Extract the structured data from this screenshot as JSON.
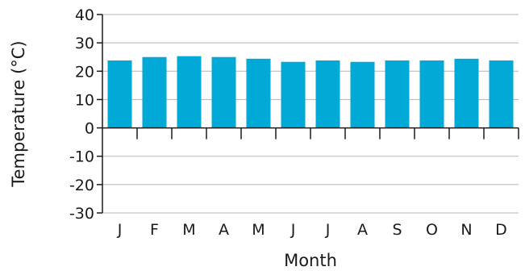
{
  "chart_data": {
    "type": "bar",
    "title": "",
    "xlabel": "Month",
    "ylabel": "Temperature (°C)",
    "categories": [
      "J",
      "F",
      "M",
      "A",
      "M",
      "J",
      "J",
      "A",
      "S",
      "O",
      "N",
      "D"
    ],
    "values": [
      23.8,
      25.0,
      25.3,
      25.0,
      24.4,
      23.3,
      23.8,
      23.3,
      23.8,
      23.8,
      24.4,
      23.8
    ],
    "ylim": [
      -30,
      40
    ],
    "yticks": [
      40,
      30,
      20,
      10,
      0,
      -10,
      -20,
      -30
    ],
    "grid": true,
    "legend": "none",
    "colors": {
      "bar": "#00a9d6",
      "grid": "#b5b5b5",
      "axis": "#1a1a1a"
    }
  }
}
